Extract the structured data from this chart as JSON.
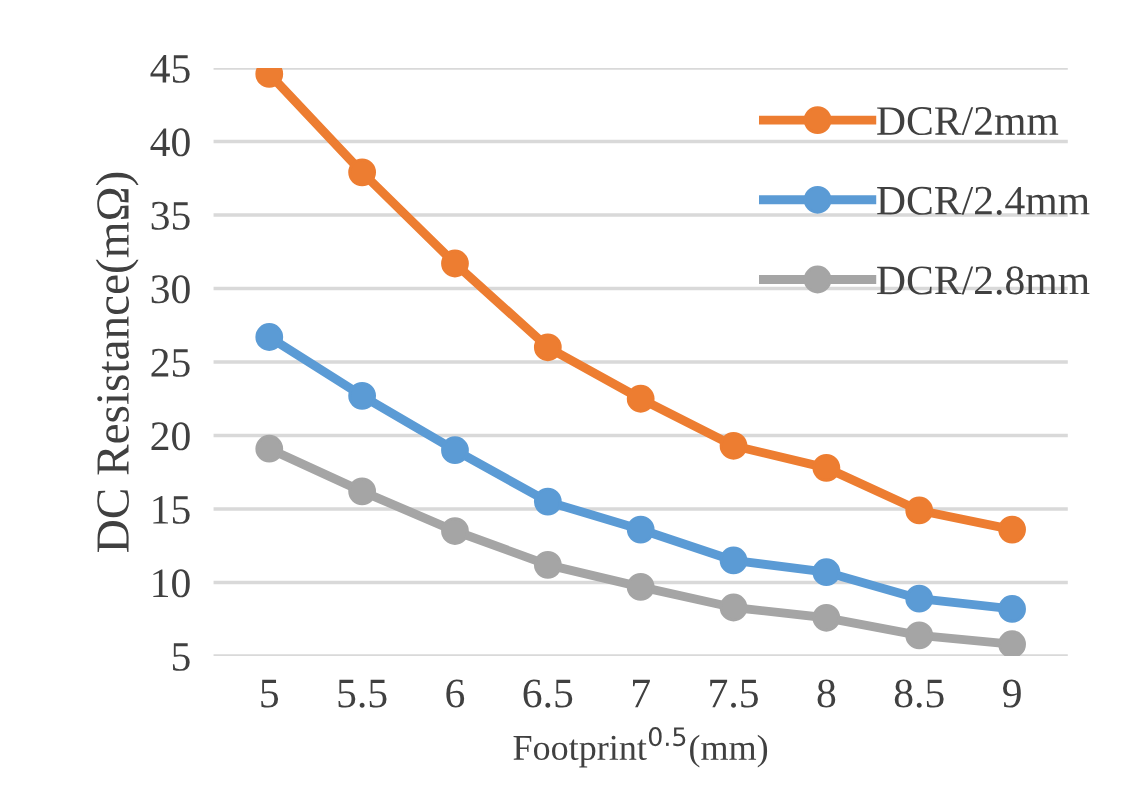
{
  "chart_data": {
    "type": "line",
    "xlabel": "Footprint$^{0.5}$(mm)",
    "ylabel": "DC Resistance(mΩ)",
    "categories": [
      "5",
      "5.5",
      "6",
      "6.5",
      "7",
      "7.5",
      "8",
      "8.5",
      "9"
    ],
    "series": [
      {
        "name": "DCR/2mm",
        "color": "#ed7d31",
        "values": [
          44.6,
          37.9,
          31.7,
          26.0,
          22.5,
          19.3,
          17.8,
          14.9,
          13.6
        ]
      },
      {
        "name": "DCR/2.4mm",
        "color": "#5b9bd5",
        "values": [
          26.7,
          22.7,
          19.0,
          15.5,
          13.6,
          11.5,
          10.7,
          8.9,
          8.2
        ]
      },
      {
        "name": "DCR/2.8mm",
        "color": "#a5a5a5",
        "values": [
          19.1,
          16.2,
          13.5,
          11.2,
          9.7,
          8.3,
          7.6,
          6.4,
          5.8
        ]
      }
    ],
    "ylim": [
      5,
      45
    ],
    "yticks": [
      5,
      10,
      15,
      20,
      25,
      30,
      35,
      40,
      45
    ],
    "grid": "y",
    "legend": "top right",
    "marker": "circle",
    "line_style": "solid"
  }
}
